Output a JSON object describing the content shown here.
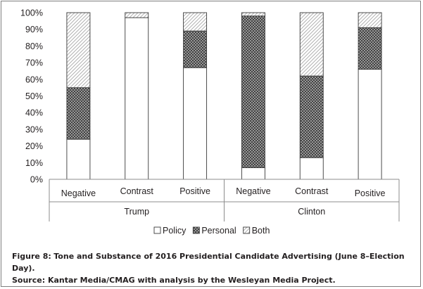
{
  "chart_data": {
    "type": "bar",
    "stacked": true,
    "percent_stacked": true,
    "title": "",
    "xlabel": "",
    "ylabel": "",
    "ylim": [
      0,
      100
    ],
    "y_ticks": [
      "0%",
      "10%",
      "20%",
      "30%",
      "40%",
      "50%",
      "60%",
      "70%",
      "80%",
      "90%",
      "100%"
    ],
    "categories": [
      "Negative",
      "Contrast",
      "Positive",
      "Negative",
      "Contrast",
      "Positive"
    ],
    "groups": [
      {
        "label": "Trump",
        "categories": [
          "Negative",
          "Contrast",
          "Positive"
        ]
      },
      {
        "label": "Clinton",
        "categories": [
          "Negative",
          "Contrast",
          "Positive"
        ]
      }
    ],
    "series": [
      {
        "name": "Policy",
        "values": [
          24,
          97,
          67,
          7,
          13,
          66
        ]
      },
      {
        "name": "Personal",
        "values": [
          31,
          0,
          22,
          91,
          49,
          25
        ]
      },
      {
        "name": "Both",
        "values": [
          45,
          3,
          11,
          2,
          38,
          9
        ]
      }
    ],
    "series_patterns": [
      "plain-white",
      "crosshatch-dark",
      "diagonal-light"
    ],
    "grid": false,
    "legend_position": "bottom"
  },
  "caption": {
    "label": "Figure 8:",
    "title": "Tone and Substance of 2016 Presidential Candidate Advertising (June 8–Election Day).",
    "source": "Source: Kantar Media/CMAG with analysis by the Wesleyan Media Project."
  },
  "colors": {
    "bar_stroke": "#3a3a3a",
    "axis": "#8c8c8c",
    "text": "#231f20",
    "frame": "#7f7f7f"
  }
}
